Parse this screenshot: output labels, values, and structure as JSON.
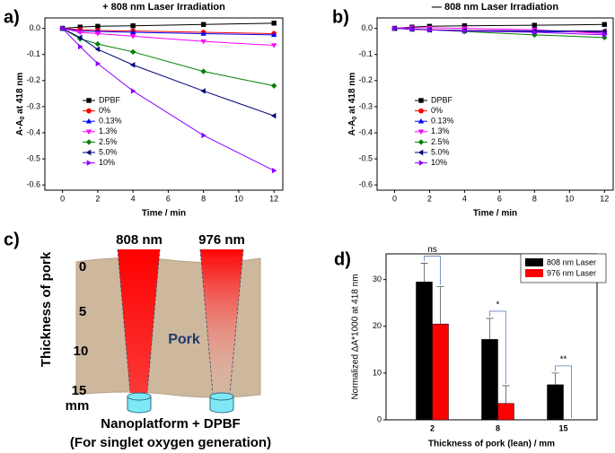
{
  "chart_data": [
    {
      "type": "line",
      "panel": "a)",
      "title": "+ 808 nm Laser Irradiation",
      "x_label": "Time / min",
      "y_label": {
        "main": "A-A",
        "sub": "0",
        "rest": " at 418 nm"
      },
      "x": [
        0,
        1,
        2,
        4,
        8,
        12
      ],
      "xlim": [
        -1,
        12.5
      ],
      "xticks": [
        0,
        2,
        4,
        6,
        8,
        10,
        12
      ],
      "ylim": [
        -0.62,
        0.04
      ],
      "yticks": [
        {
          "value": 0,
          "label": "0.0"
        },
        -0.1,
        -0.2,
        -0.3,
        -0.4,
        -0.5,
        -0.6
      ],
      "series": [
        {
          "name": "DPBF",
          "color": "#000000",
          "marker": "square",
          "values": [
            0,
            0.005,
            0.008,
            0.01,
            0.015,
            0.02
          ]
        },
        {
          "name": "0%",
          "color": "#ff0000",
          "marker": "circle",
          "values": [
            0,
            -0.005,
            -0.008,
            -0.01,
            -0.015,
            -0.02
          ]
        },
        {
          "name": "0.13%",
          "color": "#0000ff",
          "marker": "triangle-up",
          "values": [
            0,
            -0.01,
            -0.012,
            -0.015,
            -0.02,
            -0.025
          ]
        },
        {
          "name": "1.3%",
          "color": "#ff00ff",
          "marker": "triangle-down",
          "values": [
            0,
            -0.015,
            -0.02,
            -0.03,
            -0.05,
            -0.065
          ]
        },
        {
          "name": "2.5%",
          "color": "#008000",
          "marker": "diamond",
          "values": [
            0,
            -0.04,
            -0.06,
            -0.09,
            -0.165,
            -0.22
          ]
        },
        {
          "name": "5.0%",
          "color": "#000080",
          "marker": "triangle-left",
          "values": [
            0,
            -0.035,
            -0.08,
            -0.14,
            -0.24,
            -0.335
          ]
        },
        {
          "name": "10%",
          "color": "#8b00ff",
          "marker": "triangle-right",
          "values": [
            0,
            -0.07,
            -0.135,
            -0.24,
            -0.41,
            -0.545
          ]
        }
      ]
    },
    {
      "type": "line",
      "panel": "b)",
      "title": "— 808 nm Laser Irradiation",
      "x_label": "Time / min",
      "y_label": {
        "main": "A-A",
        "sub": "0",
        "rest": " at 418 nm"
      },
      "x": [
        0,
        1,
        2,
        4,
        8,
        12
      ],
      "xlim": [
        -1,
        12.5
      ],
      "xticks": [
        0,
        2,
        4,
        6,
        8,
        10,
        12
      ],
      "ylim": [
        -0.62,
        0.04
      ],
      "yticks": [
        {
          "value": 0,
          "label": "0.0"
        },
        -0.1,
        -0.2,
        -0.3,
        -0.4,
        -0.5,
        -0.6
      ],
      "series": [
        {
          "name": "DPBF",
          "color": "#000000",
          "marker": "square",
          "values": [
            0,
            0.005,
            0.008,
            0.01,
            0.012,
            0.015
          ]
        },
        {
          "name": "0%",
          "color": "#ff0000",
          "marker": "circle",
          "values": [
            0,
            -0.003,
            -0.005,
            -0.008,
            -0.01,
            -0.012
          ]
        },
        {
          "name": "0.13%",
          "color": "#0000ff",
          "marker": "triangle-up",
          "values": [
            0,
            -0.003,
            -0.006,
            -0.008,
            -0.012,
            -0.015
          ]
        },
        {
          "name": "1.3%",
          "color": "#ff00ff",
          "marker": "triangle-down",
          "values": [
            0,
            0.003,
            0.002,
            0,
            -0.005,
            -0.02
          ]
        },
        {
          "name": "2.5%",
          "color": "#008000",
          "marker": "diamond",
          "values": [
            0,
            -0.002,
            -0.005,
            -0.012,
            -0.025,
            -0.035
          ]
        },
        {
          "name": "5.0%",
          "color": "#000080",
          "marker": "triangle-left",
          "values": [
            0,
            -0.003,
            -0.006,
            -0.008,
            -0.01,
            -0.01
          ]
        },
        {
          "name": "10%",
          "color": "#8b00ff",
          "marker": "triangle-right",
          "values": [
            0,
            -0.003,
            -0.006,
            -0.01,
            -0.015,
            -0.025
          ]
        }
      ]
    },
    {
      "type": "bar",
      "panel": "d)",
      "x_label": "Thickness of pork (lean) / mm",
      "y_label": "Normalized ΔA*1000 at 418 nm",
      "categories": [
        "2",
        "8",
        "15"
      ],
      "ylim": [
        0,
        35.5
      ],
      "yticks": [
        0,
        10,
        20,
        30
      ],
      "series": [
        {
          "name": "808 nm Laser",
          "color": "#000000",
          "values": [
            29.5,
            17.2,
            7.5
          ],
          "errors": [
            4,
            4.5,
            2.5
          ]
        },
        {
          "name": "976 nm Laser",
          "color": "#ff0000",
          "values": [
            20.5,
            3.5,
            null
          ],
          "errors": [
            8,
            3.8,
            null
          ]
        }
      ],
      "annotations": [
        "ns",
        "*",
        "**"
      ]
    }
  ],
  "diagram": {
    "panel": "c)",
    "laser_1": "808 nm",
    "laser_2": "976 nm",
    "axis_label": "Thickness of pork",
    "depths": [
      "0",
      "5",
      "10",
      "15"
    ],
    "unit": "mm",
    "tissue": "Pork",
    "caption_1": "Nanoplatform + DPBF",
    "caption_2": "(For singlet oxygen generation)"
  }
}
